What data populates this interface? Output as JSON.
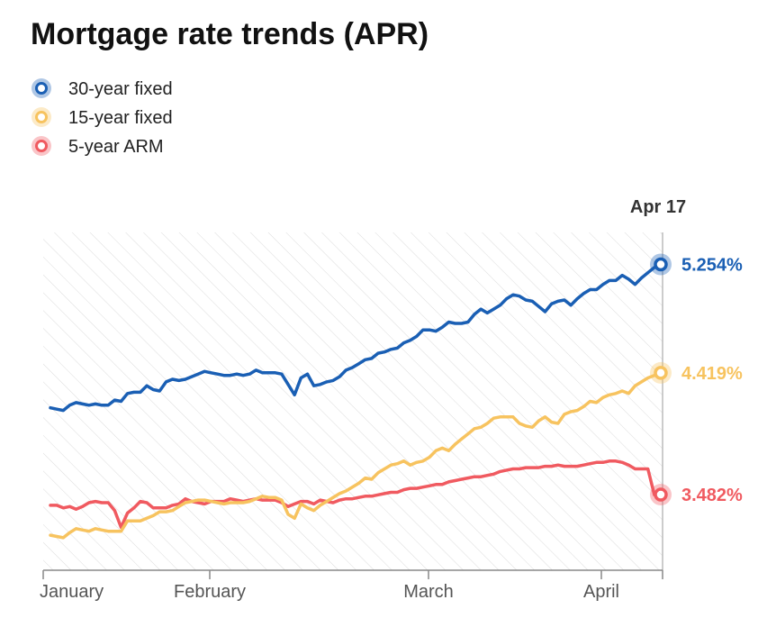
{
  "chart_data": {
    "type": "line",
    "title": "Mortgage rate trends (APR)",
    "xlabel": "",
    "ylabel": "",
    "x_tick_labels": [
      "January",
      "February",
      "March",
      "April"
    ],
    "end_date_label": "Apr 17",
    "grid": false,
    "legend_position": "top-left",
    "ylim": [
      2.9,
      5.5
    ],
    "series": [
      {
        "name": "30-year fixed",
        "color": "#1a5fb4",
        "end_value_label": "5.254%",
        "values": [
          4.15,
          4.14,
          4.13,
          4.17,
          4.19,
          4.18,
          4.17,
          4.18,
          4.17,
          4.17,
          4.21,
          4.2,
          4.26,
          4.27,
          4.27,
          4.32,
          4.29,
          4.28,
          4.35,
          4.37,
          4.36,
          4.37,
          4.39,
          4.41,
          4.43,
          4.42,
          4.41,
          4.4,
          4.4,
          4.41,
          4.4,
          4.41,
          4.44,
          4.42,
          4.42,
          4.42,
          4.41,
          4.33,
          4.25,
          4.38,
          4.41,
          4.32,
          4.33,
          4.35,
          4.36,
          4.39,
          4.44,
          4.46,
          4.49,
          4.52,
          4.53,
          4.57,
          4.58,
          4.6,
          4.61,
          4.65,
          4.67,
          4.7,
          4.75,
          4.75,
          4.74,
          4.77,
          4.81,
          4.8,
          4.8,
          4.81,
          4.87,
          4.91,
          4.88,
          4.91,
          4.94,
          4.99,
          5.02,
          5.01,
          4.98,
          4.97,
          4.93,
          4.89,
          4.95,
          4.97,
          4.98,
          4.94,
          4.99,
          5.03,
          5.06,
          5.06,
          5.1,
          5.13,
          5.13,
          5.17,
          5.14,
          5.1,
          5.15,
          5.19,
          5.23,
          5.254
        ]
      },
      {
        "name": "15-year fixed",
        "color": "#f7c35f",
        "end_value_label": "4.419%",
        "values": [
          3.17,
          3.16,
          3.15,
          3.19,
          3.22,
          3.21,
          3.2,
          3.22,
          3.21,
          3.2,
          3.2,
          3.2,
          3.28,
          3.28,
          3.28,
          3.3,
          3.32,
          3.35,
          3.35,
          3.36,
          3.39,
          3.42,
          3.43,
          3.44,
          3.44,
          3.43,
          3.42,
          3.41,
          3.42,
          3.42,
          3.42,
          3.43,
          3.45,
          3.47,
          3.46,
          3.46,
          3.44,
          3.33,
          3.3,
          3.41,
          3.38,
          3.36,
          3.4,
          3.43,
          3.46,
          3.49,
          3.51,
          3.54,
          3.57,
          3.61,
          3.6,
          3.65,
          3.68,
          3.71,
          3.72,
          3.74,
          3.71,
          3.73,
          3.74,
          3.77,
          3.82,
          3.84,
          3.82,
          3.87,
          3.91,
          3.95,
          3.99,
          4.0,
          4.03,
          4.07,
          4.08,
          4.08,
          4.08,
          4.03,
          4.01,
          4.0,
          4.05,
          4.08,
          4.04,
          4.03,
          4.1,
          4.12,
          4.13,
          4.16,
          4.2,
          4.19,
          4.23,
          4.25,
          4.26,
          4.28,
          4.26,
          4.32,
          4.35,
          4.38,
          4.4,
          4.419
        ]
      },
      {
        "name": "5-year ARM",
        "color": "#f05a60",
        "end_value_label": "3.482%",
        "values": [
          3.4,
          3.4,
          3.38,
          3.39,
          3.37,
          3.39,
          3.42,
          3.43,
          3.42,
          3.42,
          3.36,
          3.23,
          3.34,
          3.38,
          3.43,
          3.42,
          3.38,
          3.38,
          3.38,
          3.4,
          3.41,
          3.45,
          3.43,
          3.42,
          3.41,
          3.43,
          3.43,
          3.43,
          3.45,
          3.44,
          3.43,
          3.44,
          3.45,
          3.44,
          3.44,
          3.44,
          3.42,
          3.39,
          3.41,
          3.43,
          3.43,
          3.41,
          3.44,
          3.43,
          3.42,
          3.44,
          3.45,
          3.45,
          3.46,
          3.47,
          3.47,
          3.48,
          3.49,
          3.5,
          3.5,
          3.52,
          3.53,
          3.53,
          3.54,
          3.55,
          3.56,
          3.56,
          3.58,
          3.59,
          3.6,
          3.61,
          3.62,
          3.62,
          3.63,
          3.64,
          3.66,
          3.67,
          3.68,
          3.68,
          3.69,
          3.69,
          3.69,
          3.7,
          3.7,
          3.71,
          3.7,
          3.7,
          3.7,
          3.71,
          3.72,
          3.73,
          3.73,
          3.74,
          3.74,
          3.73,
          3.71,
          3.68,
          3.68,
          3.68,
          3.48,
          3.482
        ]
      }
    ]
  }
}
